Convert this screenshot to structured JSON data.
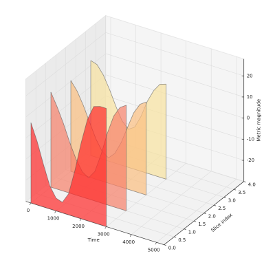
{
  "chart_data": {
    "type": "poly3d",
    "xlabel": "Time",
    "ylabel": "Slice index",
    "zlabel": "Metric magnitude",
    "x": [
      0,
      250,
      500,
      750,
      1000,
      1250,
      1500,
      1750,
      2000,
      2250,
      2500,
      2750,
      3000
    ],
    "series": [
      {
        "color": "#ff2a2a",
        "slice": 0,
        "values": [
          8,
          0,
          -10,
          -19,
          -24,
          -25,
          -20,
          -8,
          6,
          18,
          25,
          26,
          26
        ]
      },
      {
        "color": "#f7806a",
        "slice": 1,
        "values": [
          15,
          9,
          2,
          -6,
          -13,
          -18,
          -20,
          -16,
          -7,
          4,
          13,
          18,
          20
        ]
      },
      {
        "color": "#fbbf80",
        "slice": 2,
        "values": [
          13,
          9,
          3,
          -4,
          -11,
          -16,
          -18,
          -15,
          -9,
          -1,
          7,
          12,
          14
        ]
      },
      {
        "color": "#f8e2a0",
        "slice": 3,
        "values": [
          15,
          14,
          10,
          4,
          -3,
          -9,
          -12,
          -10,
          -4,
          4,
          10,
          14,
          15
        ]
      }
    ],
    "xlim": [
      -200,
      5300
    ],
    "xticks": [
      0,
      1000,
      2000,
      3000,
      4000,
      5000
    ],
    "ylim": [
      0,
      4
    ],
    "yticks": [
      {
        "value": 0,
        "label": "0.0"
      },
      {
        "value": 0.5,
        "label": "0.5"
      },
      {
        "value": 1,
        "label": "1.0"
      },
      {
        "value": 1.5,
        "label": "1.5"
      },
      {
        "value": 2,
        "label": "2.0"
      },
      {
        "value": 2.5,
        "label": "2.5"
      },
      {
        "value": 3,
        "label": "3.0"
      },
      {
        "value": 3.5,
        "label": "3.5"
      },
      {
        "value": 4,
        "label": "4.0"
      }
    ],
    "zlim": [
      -30,
      28
    ],
    "zticks": [
      -20,
      -10,
      0,
      10,
      20
    ],
    "grid": true
  }
}
